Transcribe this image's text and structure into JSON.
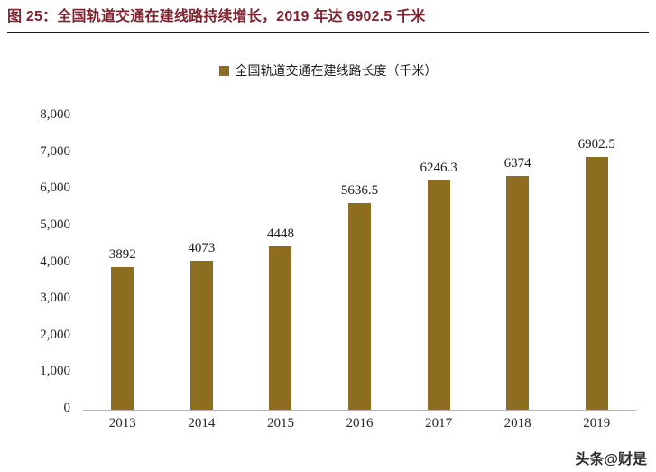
{
  "header": {
    "title": "图 25：全国轨道交通在建线路持续增长，2019 年达 6902.5 千米",
    "title_color": "#7E2430",
    "divider_color": "#1a1a1a"
  },
  "legend": {
    "label": "全国轨道交通在建线路长度（千米）",
    "swatch_color": "#8D6E21"
  },
  "chart_data": {
    "type": "bar",
    "title": "全国轨道交通在建线路长度（千米）",
    "categories": [
      "2013",
      "2014",
      "2015",
      "2016",
      "2017",
      "2018",
      "2019"
    ],
    "values": [
      3892,
      4073,
      4448,
      5636.5,
      6246.3,
      6374,
      6902.5
    ],
    "value_labels": [
      "3892",
      "4073",
      "4448",
      "5636.5",
      "6246.3",
      "6374",
      "6902.5"
    ],
    "xlabel": "",
    "ylabel": "",
    "ylim": [
      0,
      8000
    ],
    "ytick_values": [
      8000,
      7000,
      6000,
      5000,
      4000,
      3000,
      2000,
      1000,
      0
    ],
    "ytick_labels": [
      "8,000",
      "7,000",
      "6,000",
      "5,000",
      "4,000",
      "3,000",
      "2,000",
      "1,000",
      "0"
    ],
    "grid": false,
    "legend_position": "top",
    "bar_color": "#8D6E21"
  },
  "footer": {
    "watermark": "头条@财是"
  }
}
